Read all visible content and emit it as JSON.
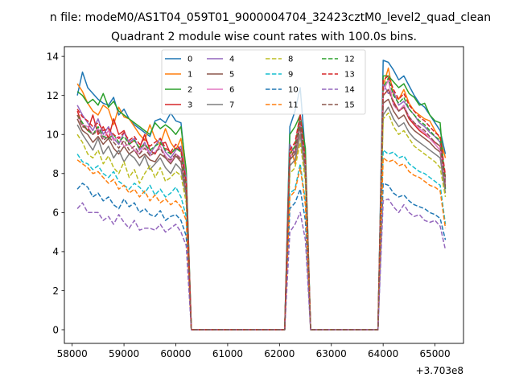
{
  "chart_data": {
    "type": "line",
    "suptitle": "n file: modeM0/AS1T04_059T01_9000004704_32423cztM0_level2_quad_clean",
    "title": "Quadrant 2 module wise count rates with 100.0s bins.",
    "xlabel": "",
    "ylabel": "",
    "x_offset_label": "+3.703e8",
    "xlim": [
      57850,
      65550
    ],
    "ylim": [
      -0.7,
      14.5
    ],
    "xticks": [
      58000,
      59000,
      60000,
      61000,
      62000,
      63000,
      64000,
      65000
    ],
    "xtick_labels": [
      "58000",
      "59000",
      "60000",
      "61000",
      "62000",
      "63000",
      "64000",
      "65000"
    ],
    "yticks": [
      0,
      2,
      4,
      6,
      8,
      10,
      12,
      14
    ],
    "ytick_labels": [
      "0",
      "2",
      "4",
      "6",
      "8",
      "10",
      "12",
      "14"
    ],
    "legend_position": "upper-center",
    "segments": [
      {
        "start": 58100,
        "count": 22
      },
      {
        "start": 62200,
        "count": 4
      },
      {
        "start": 64000,
        "count": 13
      }
    ],
    "gap_value": 0,
    "series": [
      {
        "name": "0",
        "color": "#1f77b4",
        "dash": "solid",
        "values": [
          12.0,
          13.2,
          12.4,
          12.1,
          11.8,
          11.6,
          11.5,
          11.9,
          11.0,
          11.3,
          10.8,
          10.5,
          10.3,
          10.1,
          9.9,
          10.7,
          10.8,
          10.6,
          11.1,
          10.7,
          10.6,
          8.0,
          10.4,
          11.2,
          12.4,
          9.0,
          13.8,
          13.7,
          13.3,
          12.8,
          13.0,
          12.5,
          12.0,
          11.6,
          11.4,
          11.0,
          10.6,
          10.2,
          9.0
        ]
      },
      {
        "name": "1",
        "color": "#ff7f0e",
        "dash": "solid",
        "values": [
          12.6,
          12.2,
          11.6,
          11.2,
          11.0,
          11.5,
          11.3,
          10.5,
          11.4,
          10.9,
          10.8,
          10.4,
          10.0,
          9.7,
          10.5,
          9.8,
          9.5,
          10.3,
          9.6,
          9.2,
          9.8,
          8.0,
          9.5,
          8.5,
          10.0,
          8.8,
          12.5,
          13.4,
          12.0,
          11.8,
          12.3,
          11.6,
          11.2,
          11.0,
          10.8,
          10.7,
          10.2,
          9.8,
          8.8
        ]
      },
      {
        "name": "2",
        "color": "#2ca02c",
        "dash": "solid",
        "values": [
          12.2,
          12.0,
          11.6,
          11.8,
          11.5,
          12.1,
          11.4,
          11.7,
          11.2,
          11.0,
          10.8,
          10.6,
          10.4,
          10.2,
          10.0,
          10.6,
          10.3,
          10.5,
          10.3,
          10.0,
          10.4,
          8.2,
          10.0,
          10.4,
          11.0,
          9.3,
          13.0,
          13.0,
          12.7,
          12.4,
          12.6,
          12.1,
          11.9,
          11.5,
          11.6,
          11.0,
          10.7,
          10.6,
          7.2
        ]
      },
      {
        "name": "3",
        "color": "#d62728",
        "dash": "solid",
        "values": [
          11.2,
          10.5,
          10.2,
          11.0,
          10.0,
          10.4,
          9.8,
          10.8,
          10.0,
          10.2,
          9.5,
          9.7,
          9.3,
          10.0,
          9.2,
          9.0,
          9.5,
          9.6,
          9.0,
          9.3,
          9.2,
          7.5,
          9.0,
          9.4,
          11.0,
          8.5,
          12.0,
          12.3,
          11.7,
          11.2,
          11.4,
          10.8,
          10.5,
          10.2,
          10.0,
          9.8,
          9.6,
          9.4,
          7.8
        ]
      },
      {
        "name": "4",
        "color": "#9467bd",
        "dash": "solid",
        "values": [
          11.5,
          11.0,
          10.6,
          10.2,
          10.8,
          10.0,
          10.4,
          9.8,
          9.5,
          10.1,
          9.6,
          9.8,
          9.2,
          9.6,
          9.0,
          9.4,
          9.8,
          9.1,
          8.8,
          9.2,
          9.4,
          7.8,
          9.5,
          9.0,
          10.6,
          8.6,
          12.6,
          12.1,
          12.2,
          11.5,
          11.7,
          11.3,
          11.0,
          10.6,
          10.4,
          10.1,
          9.9,
          9.6,
          7.6
        ]
      },
      {
        "name": "5",
        "color": "#8c564b",
        "dash": "solid",
        "values": [
          10.8,
          10.2,
          10.0,
          9.6,
          9.9,
          9.5,
          9.8,
          9.3,
          9.0,
          9.4,
          9.0,
          9.2,
          8.8,
          9.0,
          8.7,
          8.6,
          9.0,
          8.8,
          8.5,
          8.9,
          8.6,
          7.0,
          8.7,
          9.0,
          10.4,
          8.2,
          11.6,
          11.8,
          11.2,
          10.8,
          11.0,
          10.5,
          10.2,
          10.0,
          9.8,
          9.6,
          9.3,
          9.1,
          7.3
        ]
      },
      {
        "name": "6",
        "color": "#e377c2",
        "dash": "solid",
        "values": [
          11.0,
          10.5,
          10.4,
          10.0,
          10.3,
          9.8,
          10.2,
          9.7,
          9.9,
          9.4,
          9.5,
          9.2,
          9.0,
          9.5,
          8.9,
          9.1,
          9.4,
          8.9,
          8.6,
          9.0,
          8.8,
          7.2,
          8.8,
          9.2,
          10.8,
          8.4,
          12.2,
          12.8,
          11.5,
          11.2,
          11.5,
          10.9,
          10.6,
          10.3,
          10.1,
          9.8,
          9.5,
          9.2,
          7.5
        ]
      },
      {
        "name": "7",
        "color": "#7f7f7f",
        "dash": "solid",
        "values": [
          10.5,
          10.0,
          9.6,
          9.2,
          9.8,
          9.0,
          9.4,
          8.8,
          9.2,
          8.6,
          9.0,
          8.8,
          8.4,
          8.9,
          8.2,
          8.5,
          8.8,
          8.3,
          8.0,
          8.5,
          8.2,
          6.8,
          8.4,
          8.7,
          10.0,
          7.9,
          11.0,
          11.4,
          10.8,
          10.4,
          10.6,
          10.1,
          9.8,
          9.6,
          9.4,
          9.2,
          9.0,
          8.8,
          7.0
        ]
      },
      {
        "name": "8",
        "color": "#bcbd22",
        "dash": "dashed",
        "values": [
          10.0,
          9.6,
          9.0,
          8.8,
          9.2,
          8.5,
          8.9,
          8.3,
          8.0,
          8.6,
          7.8,
          8.2,
          7.5,
          8.0,
          8.4,
          7.8,
          8.3,
          7.6,
          7.8,
          8.1,
          7.9,
          6.5,
          8.0,
          8.3,
          9.6,
          7.6,
          10.8,
          11.1,
          10.4,
          10.0,
          10.2,
          9.8,
          9.4,
          9.2,
          9.0,
          8.8,
          8.6,
          8.3,
          6.8
        ]
      },
      {
        "name": "9",
        "color": "#17becf",
        "dash": "dashed",
        "values": [
          9.0,
          8.6,
          8.5,
          8.2,
          8.4,
          8.0,
          7.8,
          8.1,
          7.6,
          7.4,
          7.2,
          7.5,
          7.3,
          7.0,
          7.4,
          6.9,
          7.2,
          6.8,
          7.0,
          7.3,
          6.8,
          5.8,
          7.0,
          7.2,
          8.5,
          6.6,
          9.2,
          9.0,
          9.1,
          8.8,
          8.9,
          8.5,
          8.3,
          8.1,
          8.0,
          7.8,
          7.6,
          7.4,
          5.4
        ]
      },
      {
        "name": "10",
        "color": "#1f77b4",
        "dash": "dashed",
        "values": [
          7.2,
          7.5,
          7.3,
          6.8,
          7.0,
          6.6,
          6.8,
          6.4,
          6.2,
          6.7,
          6.3,
          6.5,
          6.0,
          6.2,
          5.9,
          5.8,
          6.1,
          5.6,
          5.8,
          5.9,
          5.6,
          4.8,
          6.2,
          6.5,
          7.2,
          5.6,
          7.5,
          7.4,
          7.0,
          6.8,
          6.9,
          6.6,
          6.4,
          6.3,
          6.2,
          6.0,
          5.9,
          5.7,
          4.6
        ]
      },
      {
        "name": "11",
        "color": "#ff7f0e",
        "dash": "dashed",
        "values": [
          8.7,
          8.5,
          8.3,
          8.0,
          8.1,
          7.8,
          7.5,
          7.7,
          7.2,
          7.4,
          7.0,
          7.2,
          6.8,
          7.1,
          6.6,
          6.9,
          6.5,
          6.7,
          6.4,
          6.6,
          6.3,
          5.6,
          6.8,
          7.1,
          8.3,
          6.4,
          8.8,
          8.6,
          8.7,
          8.4,
          8.5,
          8.1,
          7.9,
          7.8,
          7.6,
          7.4,
          7.3,
          7.1,
          5.2
        ]
      },
      {
        "name": "12",
        "color": "#2ca02c",
        "dash": "dashed",
        "values": [
          11.0,
          10.6,
          10.2,
          10.0,
          10.4,
          9.9,
          9.8,
          10.0,
          9.6,
          9.9,
          9.5,
          9.7,
          9.3,
          9.5,
          9.2,
          9.4,
          9.6,
          9.2,
          9.0,
          9.3,
          9.1,
          7.4,
          9.0,
          9.4,
          10.9,
          8.6,
          12.4,
          12.9,
          12.0,
          11.6,
          11.9,
          11.3,
          11.0,
          10.7,
          10.5,
          10.2,
          9.9,
          9.7,
          7.7
        ]
      },
      {
        "name": "13",
        "color": "#d62728",
        "dash": "dashed",
        "values": [
          11.3,
          10.9,
          10.7,
          10.4,
          10.6,
          10.2,
          10.3,
          10.0,
          9.8,
          10.1,
          9.7,
          9.9,
          9.5,
          9.8,
          9.4,
          9.6,
          9.8,
          9.3,
          9.1,
          9.5,
          9.2,
          7.6,
          9.2,
          9.6,
          11.0,
          8.7,
          12.8,
          13.0,
          12.3,
          11.8,
          12.1,
          11.5,
          11.2,
          10.9,
          10.7,
          10.4,
          10.1,
          9.9,
          7.9
        ]
      },
      {
        "name": "14",
        "color": "#9467bd",
        "dash": "dashed",
        "values": [
          6.2,
          6.5,
          6.0,
          6.0,
          6.0,
          5.6,
          5.8,
          5.4,
          5.9,
          5.5,
          5.2,
          5.6,
          5.1,
          5.2,
          5.2,
          5.1,
          5.4,
          5.0,
          5.2,
          5.4,
          5.0,
          4.3,
          5.0,
          5.4,
          6.0,
          4.6,
          6.6,
          6.7,
          6.3,
          6.0,
          6.4,
          6.0,
          5.8,
          5.9,
          5.6,
          5.5,
          5.6,
          5.3,
          4.1
        ]
      },
      {
        "name": "15",
        "color": "#8c564b",
        "dash": "dashed",
        "values": [
          11.0,
          10.4,
          10.3,
          10.0,
          10.2,
          9.7,
          9.9,
          9.6,
          9.3,
          9.7,
          9.2,
          9.4,
          9.0,
          9.3,
          8.9,
          9.1,
          9.3,
          8.8,
          8.7,
          9.0,
          8.7,
          7.1,
          8.8,
          9.2,
          10.6,
          8.3,
          12.0,
          12.3,
          11.6,
          11.2,
          11.4,
          10.9,
          10.6,
          10.4,
          10.2,
          9.9,
          9.6,
          9.4,
          7.4
        ]
      }
    ]
  }
}
